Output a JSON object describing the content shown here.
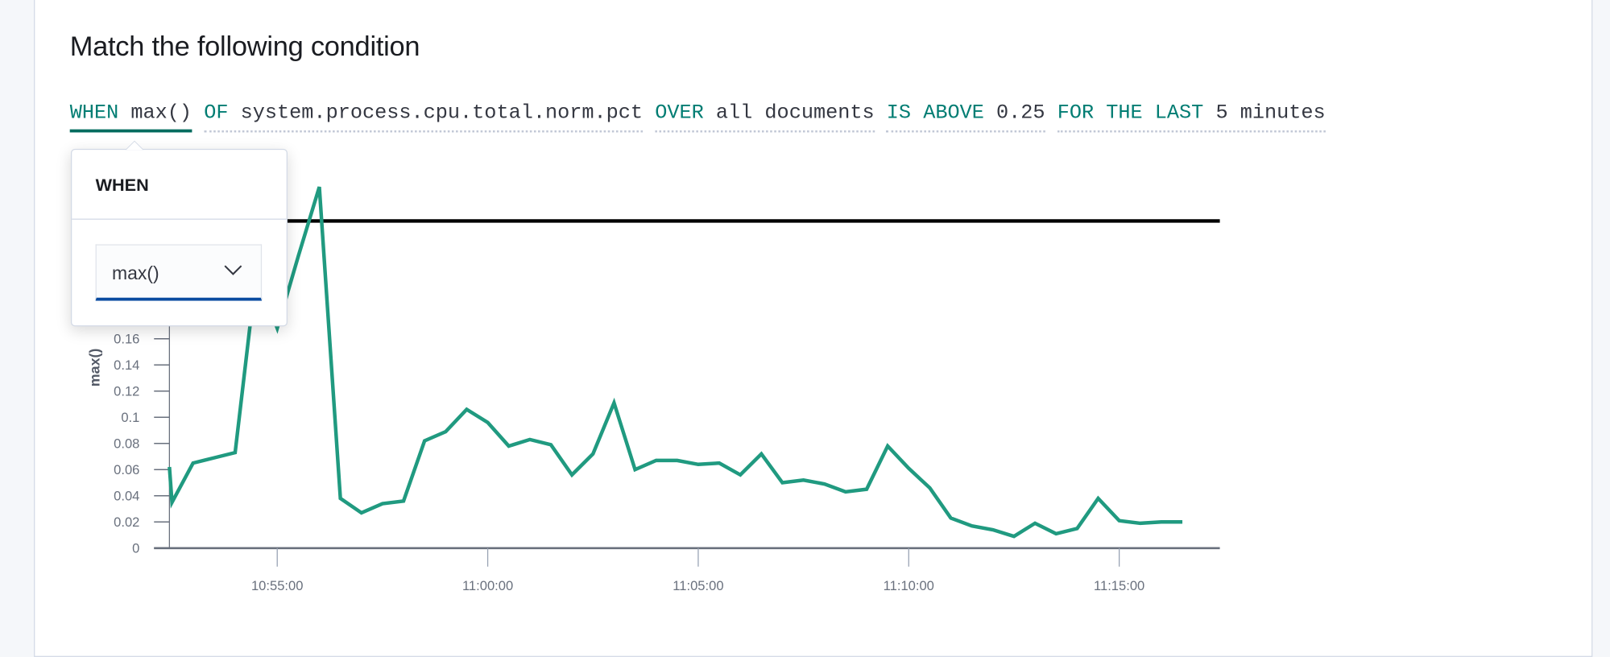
{
  "title": "Match the following condition",
  "expression": {
    "when": {
      "keyword": "WHEN",
      "value": "max()"
    },
    "of": {
      "keyword": "OF",
      "value": "system.process.cpu.total.norm.pct"
    },
    "over": {
      "keyword": "OVER",
      "value": "all documents"
    },
    "threshold": {
      "keyword": "IS ABOVE",
      "value": "0.25"
    },
    "window": {
      "keyword": "FOR THE LAST",
      "value": "5 minutes"
    }
  },
  "popover": {
    "title": "WHEN",
    "selected": "max()",
    "icon": "chevron-down-icon"
  },
  "colors": {
    "keyword": "#017d73",
    "series": "#209a80",
    "threshold": "#000000",
    "active_underline": "#006b5e",
    "select_underline": "#0a4ba0"
  },
  "chart_data": {
    "type": "line",
    "ylabel": "max()",
    "yticks": [
      "0",
      "0.02",
      "0.04",
      "0.06",
      "0.08",
      "0.1",
      "0.12",
      "0.14",
      "0.16"
    ],
    "xticks": [
      "10:55:00",
      "11:00:00",
      "11:05:00",
      "11:10:00",
      "11:15:00"
    ],
    "threshold": 0.25,
    "series": [
      {
        "x": [
          "10:52:25",
          "10:52:30",
          "10:53:00",
          "10:53:30",
          "10:54:00",
          "10:54:30",
          "10:55:00",
          "10:55:30",
          "10:56:00",
          "10:56:30",
          "10:57:00",
          "10:57:30",
          "10:58:00",
          "10:58:30",
          "10:59:00",
          "10:59:30",
          "11:00:00",
          "11:00:30",
          "11:01:00",
          "11:01:30",
          "11:02:00",
          "11:02:30",
          "11:03:00",
          "11:03:30",
          "11:04:00",
          "11:04:30",
          "11:05:00",
          "11:05:30",
          "11:06:00",
          "11:06:30",
          "11:07:00",
          "11:07:30",
          "11:08:00",
          "11:08:30",
          "11:09:00",
          "11:09:30",
          "11:10:00",
          "11:10:30",
          "11:11:00",
          "11:11:30",
          "11:12:00",
          "11:12:30",
          "11:13:00",
          "11:13:30",
          "11:14:00",
          "11:14:30",
          "11:15:00",
          "11:15:30",
          "11:16:00",
          "11:16:30"
        ],
        "values": [
          0.062,
          0.035,
          0.065,
          0.069,
          0.073,
          0.21,
          0.168,
          0.223,
          0.276,
          0.038,
          0.027,
          0.034,
          0.036,
          0.082,
          0.089,
          0.106,
          0.096,
          0.078,
          0.083,
          0.079,
          0.056,
          0.072,
          0.111,
          0.06,
          0.067,
          0.067,
          0.064,
          0.065,
          0.056,
          0.072,
          0.05,
          0.052,
          0.049,
          0.043,
          0.045,
          0.078,
          0.061,
          0.046,
          0.023,
          0.017,
          0.014,
          0.009,
          0.019,
          0.011,
          0.015,
          0.038,
          0.021,
          0.019,
          0.02,
          0.02
        ]
      }
    ]
  }
}
